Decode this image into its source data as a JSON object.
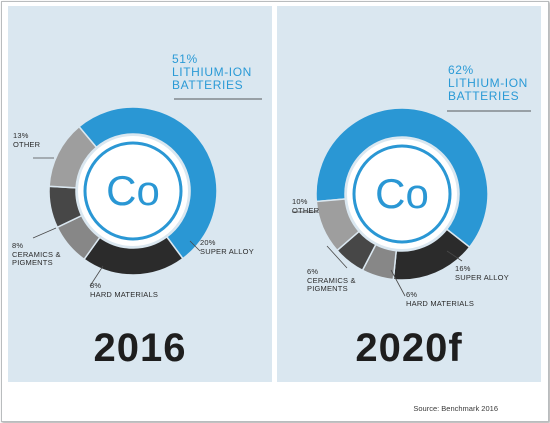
{
  "chart_data": [
    {
      "type": "pie",
      "title": "2016",
      "center_label": "Co",
      "slices": [
        {
          "label": "Lithium-ion batteries",
          "value": 51,
          "value_label": "51%",
          "text": "Lithium-ion\nbatteries",
          "color": "#2a97d4"
        },
        {
          "label": "Super alloy",
          "value": 20,
          "value_label": "20%",
          "text": "Super alloy",
          "color": "#2b2b2b"
        },
        {
          "label": "Hard materials",
          "value": 8,
          "value_label": "8%",
          "text": "Hard materials",
          "color": "#878787"
        },
        {
          "label": "Ceramics & pigments",
          "value": 8,
          "value_label": "8%",
          "text": "Ceramics &\npigments",
          "color": "#474747"
        },
        {
          "label": "Other",
          "value": 13,
          "value_label": "13%",
          "text": "Other",
          "color": "#9e9e9e"
        }
      ]
    },
    {
      "type": "pie",
      "title": "2020f",
      "center_label": "Co",
      "slices": [
        {
          "label": "Lithium-ion batteries",
          "value": 62,
          "value_label": "62%",
          "text": "Lithium-ion\nbatteries",
          "color": "#2a97d4"
        },
        {
          "label": "Super alloy",
          "value": 16,
          "value_label": "16%",
          "text": "Super alloy",
          "color": "#2b2b2b"
        },
        {
          "label": "Hard materials",
          "value": 6,
          "value_label": "6%",
          "text": "Hard materials",
          "color": "#878787"
        },
        {
          "label": "Ceramics & pigments",
          "value": 6,
          "value_label": "6%",
          "text": "Ceramics &\npigments",
          "color": "#474747"
        },
        {
          "label": "Other",
          "value": 10,
          "value_label": "10%",
          "text": "Other",
          "color": "#9e9e9e"
        }
      ]
    }
  ],
  "source": "Source: Benchmark 2016"
}
